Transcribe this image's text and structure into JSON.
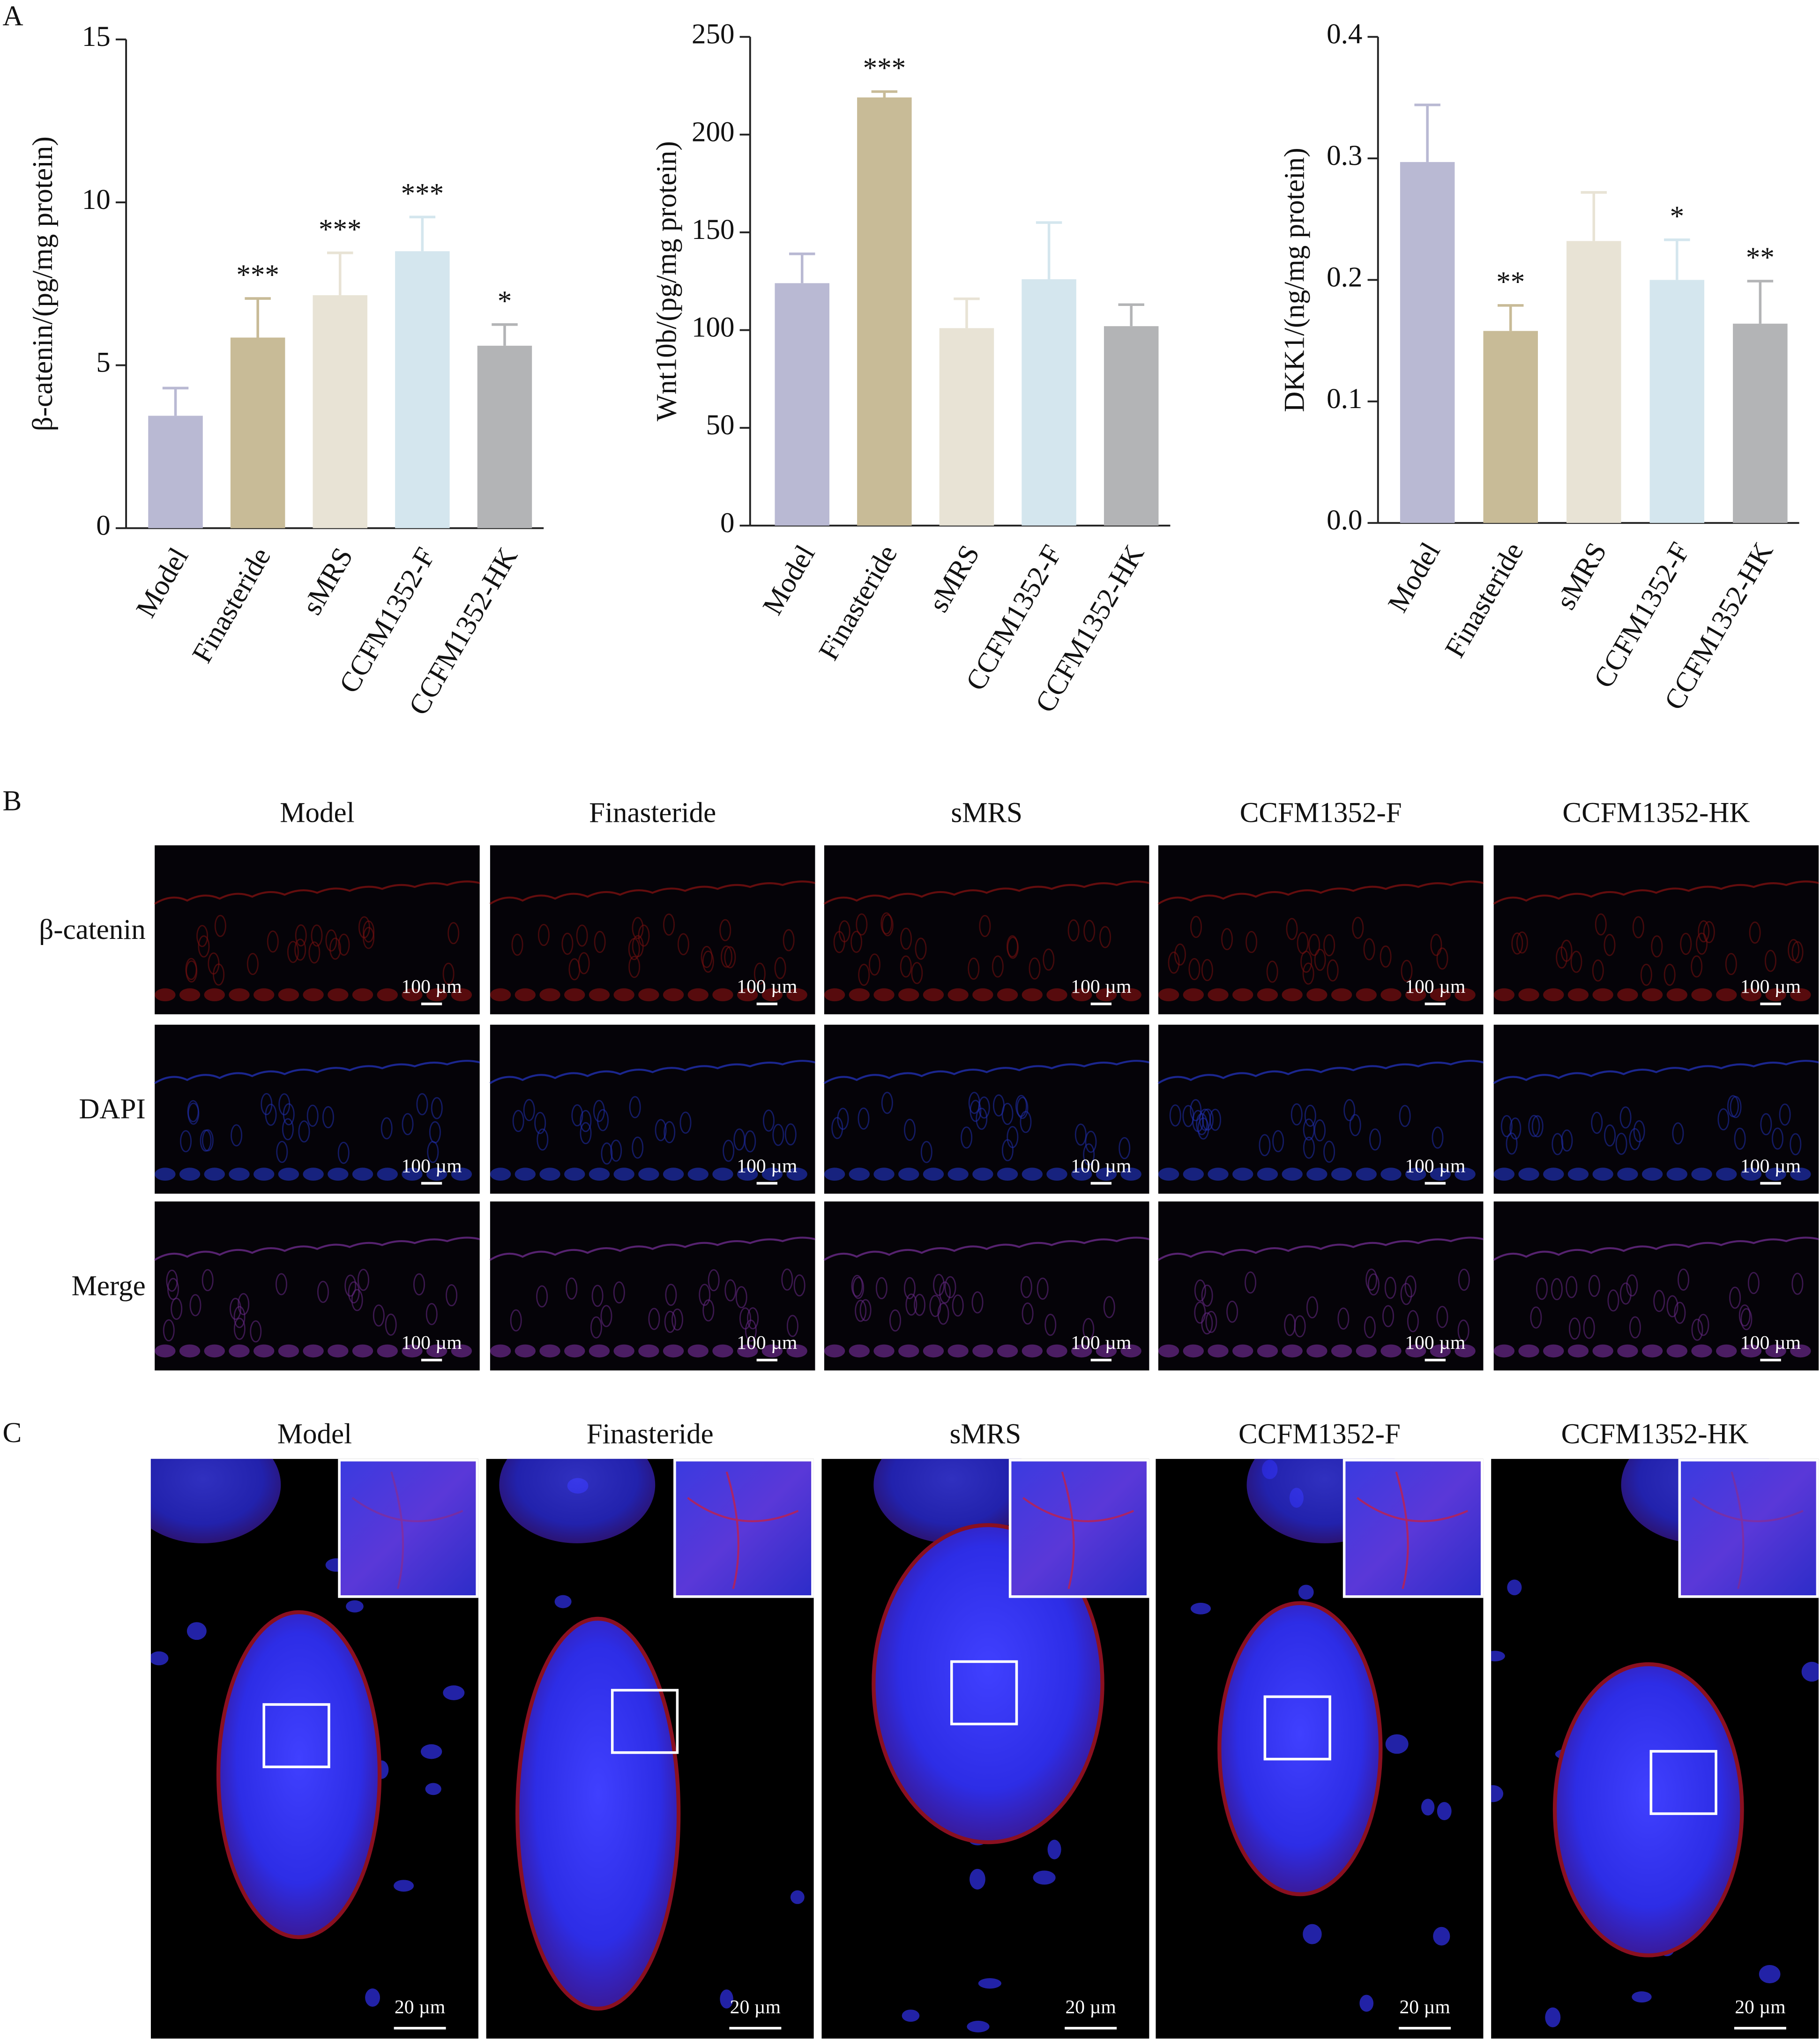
{
  "panel_a": {
    "label": "A"
  },
  "chart_data": [
    {
      "type": "bar",
      "y_label": "β-catenin/(pg/mg protein)",
      "categories": [
        "Model",
        "Finasteride",
        "sMRS",
        "CCFM1352-F",
        "CCFM1352-HK"
      ],
      "values": [
        3.45,
        5.85,
        7.15,
        8.5,
        5.6
      ],
      "errors": [
        0.85,
        1.2,
        1.3,
        1.05,
        0.65
      ],
      "significance": [
        null,
        "***",
        "***",
        "***",
        "*"
      ],
      "colors": [
        "#b9b9d3",
        "#c8bb97",
        "#e8e3d5",
        "#d4e6ee",
        "#b3b4b6"
      ],
      "ylim": [
        0,
        15
      ],
      "yticks": [
        0,
        5,
        10,
        15
      ]
    },
    {
      "type": "bar",
      "y_label": "Wnt10b/(pg/mg protein)",
      "categories": [
        "Model",
        "Finasteride",
        "sMRS",
        "CCFM1352-F",
        "CCFM1352-HK"
      ],
      "values": [
        124,
        219,
        101,
        126,
        102
      ],
      "errors": [
        15,
        3,
        15,
        29,
        11
      ],
      "significance": [
        null,
        "***",
        null,
        null,
        null
      ],
      "colors": [
        "#b9b9d3",
        "#c8bb97",
        "#e8e3d5",
        "#d4e6ee",
        "#b3b4b6"
      ],
      "ylim": [
        0,
        250
      ],
      "yticks": [
        0,
        50,
        100,
        150,
        200,
        250
      ]
    },
    {
      "type": "bar",
      "y_label": "DKK1/(ng/mg protein)",
      "categories": [
        "Model",
        "Finasteride",
        "sMRS",
        "CCFM1352-F",
        "CCFM1352-HK"
      ],
      "values": [
        0.297,
        0.158,
        0.232,
        0.2,
        0.164
      ],
      "errors": [
        0.047,
        0.021,
        0.04,
        0.033,
        0.035
      ],
      "significance": [
        null,
        "**",
        null,
        "*",
        "**"
      ],
      "colors": [
        "#b9b9d3",
        "#c8bb97",
        "#e8e3d5",
        "#d4e6ee",
        "#b3b4b6"
      ],
      "ylim": [
        0,
        0.4
      ],
      "yticks": [
        {
          "value": 0,
          "label": "0.0"
        },
        0.1,
        0.2,
        0.3,
        0.4
      ]
    }
  ],
  "panel_b": {
    "label": "B",
    "columns": [
      "Model",
      "Finasteride",
      "sMRS",
      "CCFM1352-F",
      "CCFM1352-HK"
    ],
    "rows": [
      "β-catenin",
      "DAPI",
      "Merge"
    ],
    "scale_bar": "100 µm"
  },
  "panel_c": {
    "label": "C",
    "columns": [
      "Model",
      "Finasteride",
      "sMRS",
      "CCFM1352-F",
      "CCFM1352-HK"
    ],
    "scale_bar": "20 µm"
  }
}
